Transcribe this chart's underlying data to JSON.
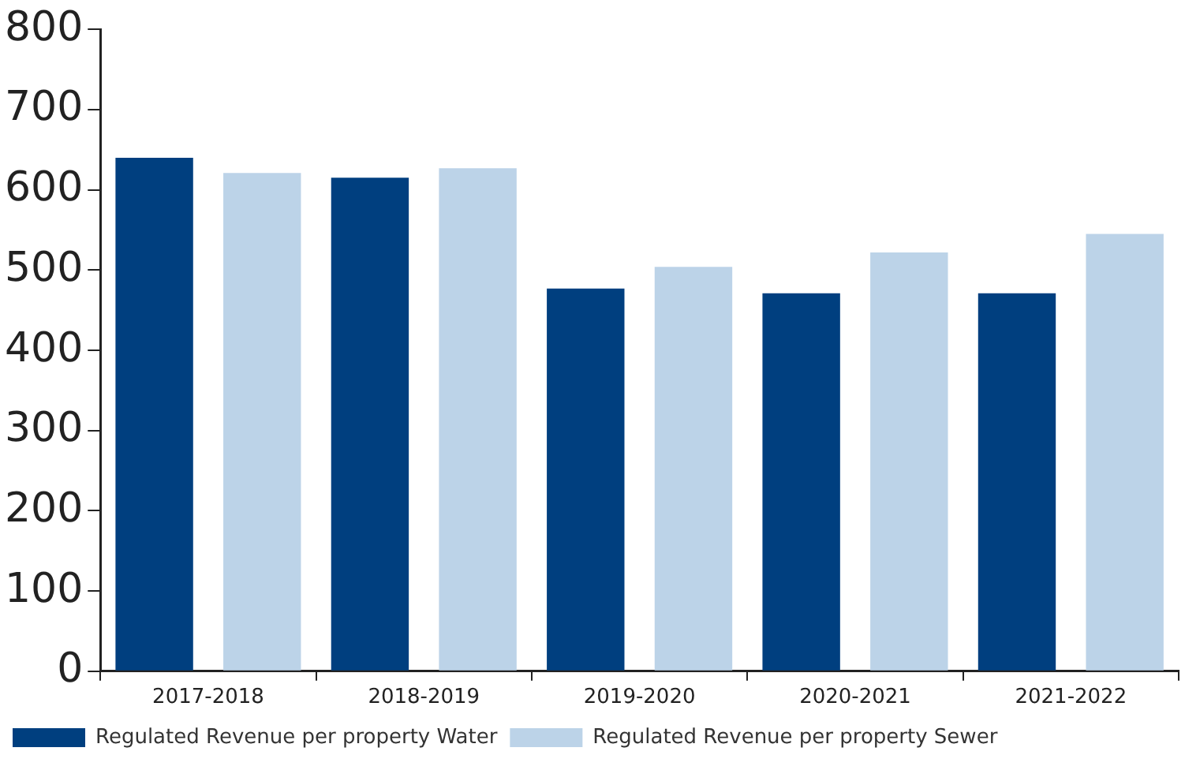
{
  "chart_data": {
    "type": "bar",
    "categories": [
      "2017-2018",
      "2018-2019",
      "2019-2020",
      "2020-2021",
      "2021-2022"
    ],
    "series": [
      {
        "name": "Regulated Revenue per property Water",
        "color": "#003f7f",
        "values": [
          640,
          615,
          477,
          471,
          471
        ]
      },
      {
        "name": "Regulated Revenue per property Sewer",
        "color": "#bcd3e8",
        "values": [
          621,
          627,
          504,
          522,
          545
        ]
      }
    ],
    "ylim": [
      0,
      800
    ],
    "yticks": [
      0,
      100,
      200,
      300,
      400,
      500,
      600,
      700,
      800
    ],
    "grid": false,
    "legend": "bottom left"
  }
}
